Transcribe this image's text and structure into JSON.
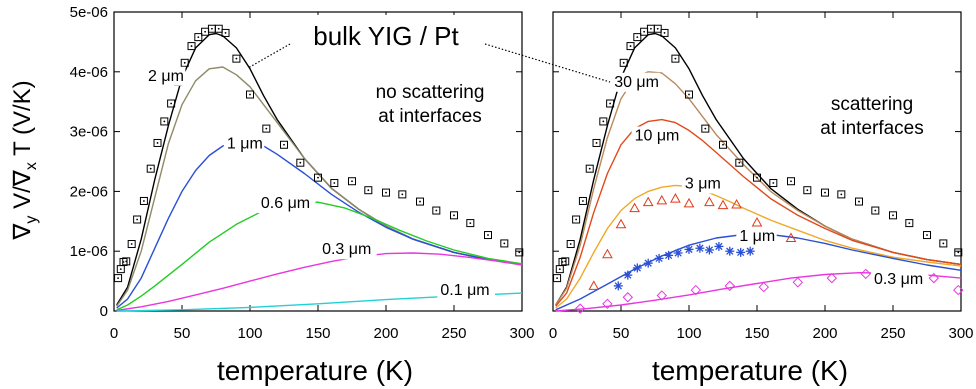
{
  "chart_data": [
    {
      "type": "line",
      "xlabel": "temperature (K)",
      "ylabel_main": "∇yV/∇xT (V/K)",
      "ylabel_parts": {
        "nabla1": "∇",
        "sub1": "y",
        "v": " V/",
        "nabla2": "∇",
        "sub2": "x",
        "rest": " T (V/K)"
      },
      "xlim": [
        0,
        300
      ],
      "ylim": [
        0,
        5e-06
      ],
      "xticks": [
        0,
        50,
        100,
        150,
        200,
        250,
        300
      ],
      "xtick_labels": [
        "0",
        "50",
        "100",
        "150",
        "200",
        "250",
        "300"
      ],
      "yticks": [
        0,
        1e-06,
        2e-06,
        3e-06,
        4e-06,
        5e-06
      ],
      "ytick_labels": [
        "0",
        "1e-06",
        "2e-06",
        "3e-06",
        "4e-06",
        "5e-06"
      ],
      "annotation": [
        "no scattering",
        "at interfaces"
      ],
      "series": [
        {
          "name": "bulk YIG / Pt",
          "color": "#000000",
          "style": "line",
          "x": [
            2,
            10,
            20,
            30,
            40,
            50,
            60,
            70,
            75,
            80,
            90,
            100,
            110,
            120,
            140,
            160,
            180,
            200,
            220,
            250,
            275,
            300
          ],
          "y": [
            1e-07,
            4e-07,
            1.2e-06,
            2.2e-06,
            3.1e-06,
            3.9e-06,
            4.4e-06,
            4.62e-06,
            4.64e-06,
            4.6e-06,
            4.4e-06,
            4.05e-06,
            3.6e-06,
            3.2e-06,
            2.55e-06,
            2.05e-06,
            1.7e-06,
            1.42e-06,
            1.2e-06,
            9.8e-07,
            8.6e-07,
            7.8e-07
          ]
        },
        {
          "name": "2 μm",
          "color": "#8e8a68",
          "style": "line",
          "x": [
            2,
            10,
            20,
            30,
            40,
            50,
            60,
            70,
            80,
            90,
            100,
            110,
            120,
            140,
            160,
            180,
            200,
            220,
            250,
            275,
            300
          ],
          "y": [
            8e-08,
            3.5e-07,
            1e-06,
            1.9e-06,
            2.8e-06,
            3.45e-06,
            3.85e-06,
            4.05e-06,
            4.08e-06,
            3.95e-06,
            3.75e-06,
            3.45e-06,
            3.15e-06,
            2.55e-06,
            2.05e-06,
            1.7e-06,
            1.42e-06,
            1.2e-06,
            9.8e-07,
            8.6e-07,
            7.8e-07
          ]
        },
        {
          "name": "1 μm",
          "color": "#2a4fd6",
          "style": "line",
          "x": [
            2,
            10,
            20,
            30,
            40,
            50,
            60,
            70,
            80,
            90,
            100,
            110,
            120,
            140,
            160,
            180,
            200,
            220,
            250,
            275,
            300
          ],
          "y": [
            5e-08,
            2e-07,
            5.5e-07,
            1.05e-06,
            1.55e-06,
            2e-06,
            2.35e-06,
            2.6e-06,
            2.76e-06,
            2.83e-06,
            2.83e-06,
            2.76e-06,
            2.62e-06,
            2.3e-06,
            1.95e-06,
            1.65e-06,
            1.4e-06,
            1.2e-06,
            9.8e-07,
            8.6e-07,
            7.8e-07
          ]
        },
        {
          "name": "0.6 μm",
          "color": "#22cc22",
          "style": "line",
          "x": [
            2,
            10,
            20,
            30,
            50,
            70,
            90,
            110,
            130,
            150,
            170,
            190,
            210,
            230,
            250,
            275,
            300
          ],
          "y": [
            2e-08,
            1e-07,
            2.5e-07,
            4.2e-07,
            7.8e-07,
            1.15e-06,
            1.45e-06,
            1.68e-06,
            1.8e-06,
            1.82e-06,
            1.72e-06,
            1.55e-06,
            1.35e-06,
            1.17e-06,
            1.02e-06,
            8.8e-07,
            7.9e-07
          ]
        },
        {
          "name": "0.3 μm",
          "color": "#e836e0",
          "style": "line",
          "x": [
            2,
            20,
            40,
            60,
            80,
            100,
            120,
            140,
            160,
            180,
            200,
            220,
            240,
            260,
            280,
            300
          ],
          "y": [
            1e-08,
            7e-08,
            1.6e-07,
            2.7e-07,
            3.8e-07,
            5e-07,
            6.2e-07,
            7.3e-07,
            8.3e-07,
            9.1e-07,
            9.6e-07,
            9.7e-07,
            9.5e-07,
            9e-07,
            8.4e-07,
            7.7e-07
          ]
        },
        {
          "name": "0.1 μm",
          "color": "#22d0d8",
          "style": "line",
          "x": [
            2,
            50,
            100,
            150,
            200,
            250,
            300
          ],
          "y": [
            0.0,
            2e-08,
            6e-08,
            1.2e-07,
            1.9e-07,
            2.5e-07,
            3e-07
          ]
        },
        {
          "name": "data",
          "color": "#000000",
          "style": "square-dot",
          "x": [
            3,
            5,
            7,
            9,
            13,
            17,
            22,
            27,
            32,
            37,
            42,
            47,
            52,
            57,
            62,
            67,
            72,
            77,
            82,
            90,
            100,
            112,
            125,
            137,
            150,
            162,
            175,
            187,
            200,
            212,
            225,
            237,
            250,
            262,
            275,
            287,
            298
          ],
          "y": [
            5.5e-07,
            7e-07,
            8.2e-07,
            8.3e-07,
            1.12e-06,
            1.53e-06,
            1.84e-06,
            2.38e-06,
            2.81e-06,
            3.17e-06,
            3.47e-06,
            3.83e-06,
            4.15e-06,
            4.43e-06,
            4.58e-06,
            4.67e-06,
            4.72e-06,
            4.72e-06,
            4.65e-06,
            4.22e-06,
            3.62e-06,
            3.05e-06,
            2.78e-06,
            2.48e-06,
            2.23e-06,
            2.14e-06,
            2.17e-06,
            2.02e-06,
            1.98e-06,
            1.95e-06,
            1.83e-06,
            1.68e-06,
            1.6e-06,
            1.47e-06,
            1.27e-06,
            1.13e-06,
            9.8e-07
          ]
        }
      ],
      "curve_labels": [
        {
          "text": "2 μm",
          "x": 25,
          "y": 3.85e-06
        },
        {
          "text": "1 μm",
          "x": 83,
          "y": 2.72e-06
        },
        {
          "text": "0.6 μm",
          "x": 108,
          "y": 1.72e-06
        },
        {
          "text": "0.3 μm",
          "x": 153,
          "y": 9.5e-07
        },
        {
          "text": "0.1 μm",
          "x": 240,
          "y": 2.7e-07
        }
      ]
    },
    {
      "type": "line",
      "xlabel": "temperature (K)",
      "xlim": [
        0,
        300
      ],
      "ylim": [
        0,
        5e-06
      ],
      "xticks": [
        0,
        50,
        100,
        150,
        200,
        250,
        300
      ],
      "xtick_labels": [
        "0",
        "50",
        "100",
        "150",
        "200",
        "250",
        "300"
      ],
      "yticks": [
        0,
        1e-06,
        2e-06,
        3e-06,
        4e-06,
        5e-06
      ],
      "annotation": [
        "scattering",
        "at interfaces"
      ],
      "series": [
        {
          "name": "bulk YIG / Pt",
          "color": "#000000",
          "style": "line",
          "x": [
            2,
            10,
            20,
            30,
            40,
            50,
            60,
            70,
            75,
            80,
            90,
            100,
            110,
            120,
            140,
            160,
            180,
            200,
            220,
            250,
            275,
            300
          ],
          "y": [
            1e-07,
            4e-07,
            1.2e-06,
            2.2e-06,
            3.1e-06,
            3.9e-06,
            4.4e-06,
            4.62e-06,
            4.64e-06,
            4.6e-06,
            4.4e-06,
            4.05e-06,
            3.6e-06,
            3.2e-06,
            2.55e-06,
            2.05e-06,
            1.7e-06,
            1.42e-06,
            1.2e-06,
            9.8e-07,
            8.6e-07,
            7.8e-07
          ]
        },
        {
          "name": "30 μm",
          "color": "#b98a5e",
          "style": "line",
          "x": [
            2,
            10,
            20,
            30,
            40,
            50,
            60,
            70,
            80,
            90,
            100,
            110,
            120,
            140,
            160,
            180,
            200,
            220,
            250,
            275,
            300
          ],
          "y": [
            1e-07,
            3.8e-07,
            1.1e-06,
            2.05e-06,
            2.9e-06,
            3.55e-06,
            3.9e-06,
            4e-06,
            3.98e-06,
            3.8e-06,
            3.55e-06,
            3.25e-06,
            2.95e-06,
            2.45e-06,
            2e-06,
            1.68e-06,
            1.42e-06,
            1.2e-06,
            9.8e-07,
            8.6e-07,
            7.8e-07
          ]
        },
        {
          "name": "10 μm",
          "color": "#e04a1a",
          "style": "line",
          "x": [
            2,
            10,
            20,
            30,
            40,
            50,
            60,
            70,
            80,
            90,
            100,
            110,
            120,
            140,
            160,
            180,
            200,
            220,
            250,
            275,
            300
          ],
          "y": [
            8e-08,
            3e-07,
            9e-07,
            1.65e-06,
            2.3e-06,
            2.78e-06,
            3.05e-06,
            3.17e-06,
            3.2e-06,
            3.15e-06,
            3.02e-06,
            2.85e-06,
            2.65e-06,
            2.25e-06,
            1.88e-06,
            1.6e-06,
            1.38e-06,
            1.18e-06,
            9.8e-07,
            8.6e-07,
            7.8e-07
          ]
        },
        {
          "name": "3 μm",
          "color": "#f0a828",
          "style": "line",
          "x": [
            2,
            10,
            20,
            30,
            40,
            50,
            60,
            70,
            80,
            90,
            100,
            110,
            120,
            130,
            140,
            160,
            180,
            200,
            220,
            250,
            275,
            300
          ],
          "y": [
            5e-08,
            2e-07,
            5.5e-07,
            9.8e-07,
            1.38e-06,
            1.68e-06,
            1.88e-06,
            2e-06,
            2.07e-06,
            2.1e-06,
            2.08e-06,
            2.02e-06,
            1.93e-06,
            1.83e-06,
            1.72e-06,
            1.52e-06,
            1.35e-06,
            1.18e-06,
            1.05e-06,
            9e-07,
            8.2e-07,
            7.5e-07
          ]
        },
        {
          "name": "1 μm",
          "color": "#2a4fd6",
          "style": "line",
          "x": [
            2,
            20,
            40,
            60,
            80,
            100,
            120,
            140,
            160,
            180,
            200,
            220,
            250,
            275,
            300
          ],
          "y": [
            2e-08,
            2e-07,
            4.5e-07,
            7e-07,
            9.2e-07,
            1.1e-06,
            1.22e-06,
            1.28e-06,
            1.28e-06,
            1.22e-06,
            1.13e-06,
            1.02e-06,
            8.8e-07,
            7.7e-07,
            6.8e-07
          ]
        },
        {
          "name": "0.3 μm",
          "color": "#e836e0",
          "style": "line",
          "x": [
            2,
            25,
            50,
            75,
            100,
            125,
            150,
            175,
            200,
            225,
            250,
            275,
            300
          ],
          "y": [
            0.0,
            4e-08,
            1e-07,
            1.8e-07,
            2.7e-07,
            3.7e-07,
            4.6e-07,
            5.5e-07,
            6.1e-07,
            6.4e-07,
            6.3e-07,
            6e-07,
            5.5e-07
          ]
        },
        {
          "name": "data",
          "color": "#000000",
          "style": "square-dot",
          "x": [
            3,
            5,
            7,
            9,
            13,
            17,
            22,
            27,
            32,
            37,
            42,
            47,
            52,
            57,
            62,
            67,
            72,
            77,
            82,
            90,
            100,
            112,
            125,
            137,
            150,
            162,
            175,
            187,
            200,
            212,
            225,
            237,
            250,
            262,
            275,
            287,
            298
          ],
          "y": [
            5.5e-07,
            7e-07,
            8.2e-07,
            8.3e-07,
            1.12e-06,
            1.53e-06,
            1.84e-06,
            2.38e-06,
            2.81e-06,
            3.17e-06,
            3.47e-06,
            3.83e-06,
            4.15e-06,
            4.43e-06,
            4.58e-06,
            4.67e-06,
            4.72e-06,
            4.72e-06,
            4.65e-06,
            4.22e-06,
            3.62e-06,
            3.05e-06,
            2.78e-06,
            2.48e-06,
            2.23e-06,
            2.14e-06,
            2.17e-06,
            2.02e-06,
            1.98e-06,
            1.95e-06,
            1.83e-06,
            1.68e-06,
            1.6e-06,
            1.47e-06,
            1.27e-06,
            1.13e-06,
            9.8e-07
          ]
        },
        {
          "name": "data",
          "color": "#e03a1a",
          "style": "triangle",
          "x": [
            30,
            40,
            50,
            60,
            70,
            80,
            90,
            100,
            115,
            125,
            135,
            150,
            175
          ],
          "y": [
            4.2e-07,
            9.5e-07,
            1.45e-06,
            1.72e-06,
            1.82e-06,
            1.85e-06,
            1.88e-06,
            1.8e-06,
            1.82e-06,
            1.77e-06,
            1.78e-06,
            1.48e-06,
            1.22e-06
          ]
        },
        {
          "name": "data",
          "color": "#2a4fd6",
          "style": "star",
          "x": [
            48,
            55,
            62,
            70,
            78,
            85,
            92,
            100,
            108,
            115,
            122,
            130,
            138,
            145
          ],
          "y": [
            4.2e-07,
            6e-07,
            7.2e-07,
            8e-07,
            8.8e-07,
            9.3e-07,
            9.7e-07,
            1.03e-06,
            1.05e-06,
            1.02e-06,
            1.08e-06,
            1e-06,
            9.8e-07,
            1e-06
          ]
        },
        {
          "name": "data",
          "color": "#e836e0",
          "style": "diamond",
          "x": [
            20,
            40,
            55,
            80,
            105,
            130,
            155,
            180,
            205,
            230,
            255,
            280,
            298
          ],
          "y": [
            4e-08,
            1.2e-07,
            2.3e-07,
            2.6e-07,
            3.5e-07,
            4.2e-07,
            4e-07,
            4.8e-07,
            5.5e-07,
            6.2e-07,
            6e-07,
            5.5e-07,
            3.5e-07
          ]
        }
      ],
      "curve_labels": [
        {
          "text": "30 μm",
          "x": 45,
          "y": 3.75e-06
        },
        {
          "text": "10 μm",
          "x": 60,
          "y": 2.85e-06
        },
        {
          "text": "3 μm",
          "x": 97,
          "y": 2.05e-06
        },
        {
          "text": "1 μm",
          "x": 137,
          "y": 1.17e-06
        },
        {
          "text": "0.3 μm",
          "x": 236,
          "y": 4.5e-07
        }
      ]
    }
  ],
  "shared_label": "bulk YIG / Pt"
}
